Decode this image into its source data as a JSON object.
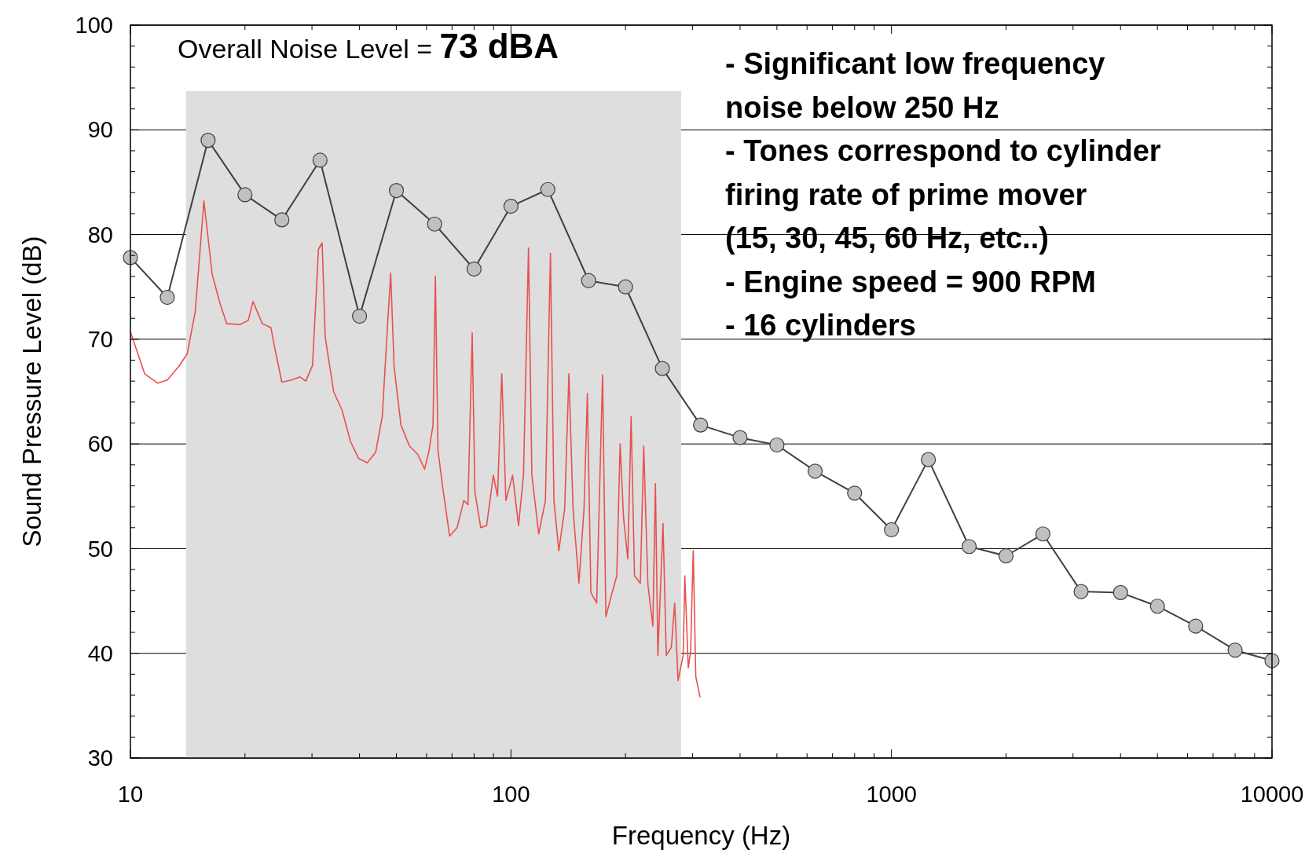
{
  "chart_data": {
    "type": "line",
    "xlabel": "Frequency (Hz)",
    "ylabel": "Sound Pressure Level (dB)",
    "log": "x",
    "xlim": [
      10,
      10000
    ],
    "ylim": [
      30,
      100
    ],
    "xticks": [
      10,
      {
        "value": 20,
        "label": null
      },
      {
        "value": 30,
        "label": null
      },
      {
        "value": 40,
        "label": null
      },
      {
        "value": 50,
        "label": null
      },
      {
        "value": 60,
        "label": null
      },
      {
        "value": 70,
        "label": null
      },
      {
        "value": 80,
        "label": null
      },
      {
        "value": 90,
        "label": null
      },
      100,
      {
        "value": 200,
        "label": null
      },
      {
        "value": 300,
        "label": null
      },
      {
        "value": 400,
        "label": null
      },
      {
        "value": 500,
        "label": null
      },
      {
        "value": 600,
        "label": null
      },
      {
        "value": 700,
        "label": null
      },
      {
        "value": 800,
        "label": null
      },
      {
        "value": 900,
        "label": null
      },
      1000,
      {
        "value": 2000,
        "label": null
      },
      {
        "value": 3000,
        "label": null
      },
      {
        "value": 4000,
        "label": null
      },
      {
        "value": 5000,
        "label": null
      },
      {
        "value": 6000,
        "label": null
      },
      {
        "value": 7000,
        "label": null
      },
      {
        "value": 8000,
        "label": null
      },
      {
        "value": 9000,
        "label": null
      },
      10000
    ],
    "yticks": [
      30,
      {
        "value": 32,
        "label": null
      },
      {
        "value": 34,
        "label": null
      },
      {
        "value": 36,
        "label": null
      },
      {
        "value": 38,
        "label": null
      },
      40,
      {
        "value": 42,
        "label": null
      },
      {
        "value": 44,
        "label": null
      },
      {
        "value": 46,
        "label": null
      },
      {
        "value": 48,
        "label": null
      },
      50,
      {
        "value": 52,
        "label": null
      },
      {
        "value": 54,
        "label": null
      },
      {
        "value": 56,
        "label": null
      },
      {
        "value": 58,
        "label": null
      },
      60,
      {
        "value": 62,
        "label": null
      },
      {
        "value": 64,
        "label": null
      },
      {
        "value": 66,
        "label": null
      },
      {
        "value": 68,
        "label": null
      },
      70,
      {
        "value": 72,
        "label": null
      },
      {
        "value": 74,
        "label": null
      },
      {
        "value": 76,
        "label": null
      },
      {
        "value": 78,
        "label": null
      },
      80,
      {
        "value": 82,
        "label": null
      },
      {
        "value": 84,
        "label": null
      },
      {
        "value": 86,
        "label": null
      },
      {
        "value": 88,
        "label": null
      },
      90,
      {
        "value": 92,
        "label": null
      },
      {
        "value": 94,
        "label": null
      },
      {
        "value": 96,
        "label": null
      },
      {
        "value": 98,
        "label": null
      },
      100
    ],
    "grid": "y",
    "bands": [
      {
        "axis": "x",
        "from": 14,
        "to": 280,
        "color": "#dedede"
      }
    ],
    "series": [
      {
        "color": "#e8504f",
        "marker": "none",
        "x": [
          10,
          10.9,
          11.8,
          12.5,
          13.4,
          14.1,
          14.8,
          15.6,
          16.4,
          17.2,
          17.9,
          19.4,
          20.4,
          21,
          22.2,
          23.4,
          24,
          25,
          26.5,
          27.9,
          28.9,
          30.1,
          31.2,
          31.9,
          32.5,
          34.2,
          36,
          37.9,
          39.8,
          41.9,
          44.1,
          45.9,
          47.4,
          48.3,
          49.3,
          51.4,
          54.1,
          56.9,
          59.3,
          60.8,
          62.4,
          63.3,
          64.3,
          66.2,
          69,
          72.2,
          75.2,
          77.1,
          79.1,
          80.4,
          83.3,
          86.3,
          89.9,
          92.2,
          94.6,
          97,
          101,
          104.7,
          107.9,
          111.2,
          113.5,
          118.3,
          123.2,
          127,
          129.7,
          133.6,
          138.4,
          142,
          145.6,
          150.9,
          155.6,
          158.8,
          162.2,
          168,
          174.1,
          177.6,
          183.2,
          189.7,
          193.6,
          197.6,
          202.8,
          206.9,
          211.2,
          218.8,
          223.3,
          229,
          236,
          239.7,
          243.3,
          251,
          256,
          264,
          269.3,
          274.9,
          283.5,
          286.4,
          292.4,
          296.6,
          301.3,
          306,
          314
        ],
        "values": [
          70.7,
          66.7,
          65.8,
          66.1,
          67.4,
          68.6,
          72.6,
          83.2,
          76.2,
          73.4,
          71.5,
          71.4,
          71.8,
          73.6,
          71.5,
          71.1,
          69,
          65.9,
          66.1,
          66.4,
          66,
          67.5,
          78.6,
          79.2,
          70.2,
          65,
          63.2,
          60.2,
          58.6,
          58.2,
          59.2,
          62.6,
          71.4,
          76.3,
          67.4,
          61.8,
          59.8,
          59,
          57.6,
          59.2,
          61.8,
          76,
          59.4,
          55.8,
          51.2,
          52,
          54.6,
          54.2,
          70.6,
          55.4,
          52,
          52.2,
          57,
          55,
          66.7,
          54.6,
          57,
          52.2,
          57,
          78.7,
          57,
          51.4,
          54.6,
          78.2,
          54.6,
          49.8,
          53.8,
          66.7,
          53.8,
          46.7,
          53.8,
          64.8,
          45.8,
          44.8,
          66.6,
          43.5,
          45.4,
          47.4,
          60,
          53,
          49,
          62.6,
          47.4,
          46.7,
          59.8,
          46.6,
          42.6,
          56.2,
          39.8,
          52.4,
          39.8,
          40.6,
          44.8,
          37.4,
          39.8,
          47.4,
          38.6,
          40.2,
          49.8,
          37.8,
          35.8
        ]
      },
      {
        "color": "#404040",
        "marker": "circle",
        "x": [
          10,
          12.5,
          16,
          20,
          25,
          31.5,
          40,
          50,
          63,
          80,
          100,
          125,
          160,
          200,
          250,
          315,
          400,
          500,
          630,
          800,
          1000,
          1250,
          1600,
          2000,
          2500,
          3150,
          4000,
          5000,
          6300,
          8000,
          10000
        ],
        "values": [
          77.8,
          74,
          89,
          83.8,
          81.4,
          87.1,
          72.2,
          84.2,
          81,
          76.7,
          82.7,
          84.3,
          75.6,
          75,
          67.2,
          61.8,
          60.6,
          59.9,
          57.4,
          55.3,
          51.8,
          58.5,
          50.2,
          49.3,
          51.4,
          45.9,
          45.8,
          44.5,
          42.6,
          40.3,
          39.3
        ]
      }
    ],
    "annotations": [
      "Overall Noise Level = ",
      "73 dBA",
      "- Significant low frequency",
      "noise below 250 Hz",
      "- Tones correspond to cylinder",
      "firing rate of prime mover",
      "(15, 30, 45, 60 Hz, etc..)",
      "- Engine speed = 900 RPM",
      "- 16 cylinders"
    ]
  }
}
